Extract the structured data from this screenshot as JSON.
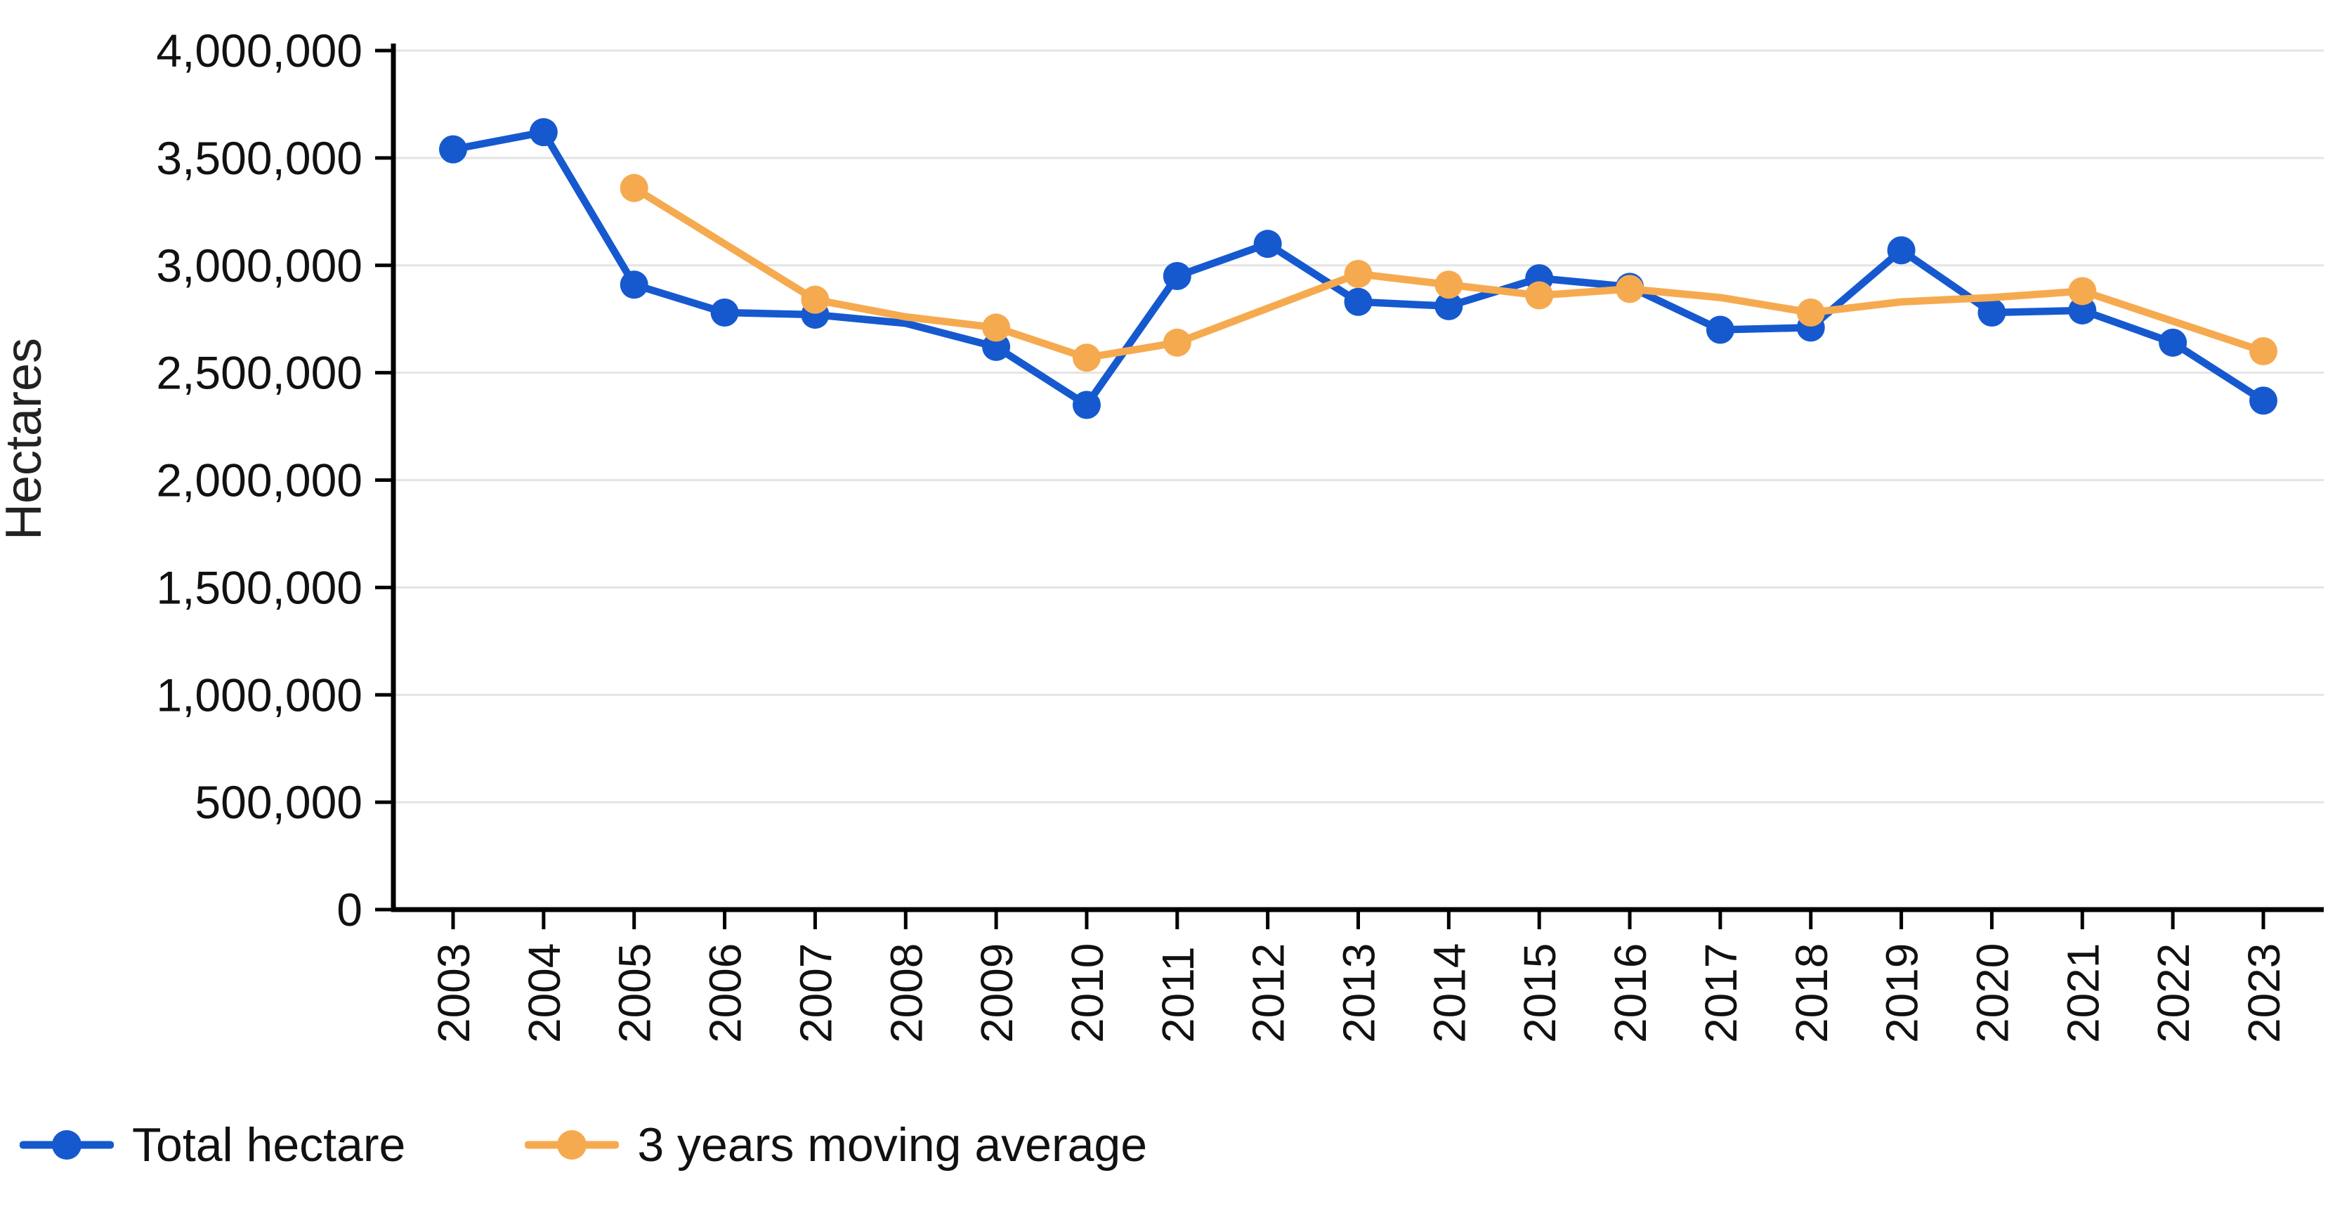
{
  "chart_data": {
    "type": "line",
    "title": "",
    "xlabel": "",
    "ylabel": "Hectares",
    "ylim": [
      0,
      4000000
    ],
    "ytick_interval": 500000,
    "ytick_labels": [
      "0",
      "500,000",
      "1,000,000",
      "1,500,000",
      "2,000,000",
      "2,500,000",
      "3,000,000",
      "3,500,000",
      "4,000,000"
    ],
    "categories": [
      "2003",
      "2004",
      "2005",
      "2006",
      "2007",
      "2008",
      "2009",
      "2010",
      "2011",
      "2012",
      "2013",
      "2014",
      "2015",
      "2016",
      "2017",
      "2018",
      "2019",
      "2020",
      "2021",
      "2022",
      "2023"
    ],
    "grid": "horizontal",
    "legend_position": "bottom-left",
    "background": "#ffffff",
    "colors": {
      "axis": "#000000",
      "gridline": "#e4e4e4",
      "tick_text": "#111111"
    },
    "series": [
      {
        "name": "Total hectare",
        "color": "#1659cf",
        "values": [
          3540000,
          3620000,
          2910000,
          2780000,
          2770000,
          2730000,
          2620000,
          2350000,
          2950000,
          3100000,
          2830000,
          2810000,
          2940000,
          2900000,
          2700000,
          2710000,
          3070000,
          2780000,
          2790000,
          2640000,
          2370000
        ],
        "marker_years": [
          "2003",
          "2004",
          "2005",
          "2006",
          "2007",
          "2009",
          "2010",
          "2011",
          "2012",
          "2013",
          "2014",
          "2015",
          "2016",
          "2017",
          "2018",
          "2019",
          "2020",
          "2021",
          "2022",
          "2023"
        ]
      },
      {
        "name": "3 years moving average",
        "color": "#f6aa4f",
        "values": [
          null,
          null,
          3360000,
          3100000,
          2840000,
          2760000,
          2710000,
          2570000,
          2640000,
          2800000,
          2960000,
          2910000,
          2860000,
          2890000,
          2850000,
          2780000,
          2830000,
          2850000,
          2880000,
          2740000,
          2600000
        ],
        "marker_years": [
          "2005",
          "2007",
          "2009",
          "2010",
          "2011",
          "2013",
          "2014",
          "2015",
          "2016",
          "2018",
          "2021",
          "2023"
        ]
      }
    ]
  }
}
